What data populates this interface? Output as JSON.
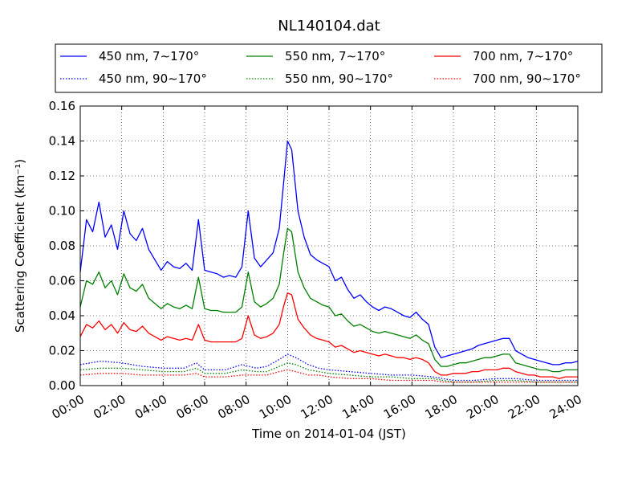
{
  "chart_data": {
    "type": "line",
    "title": "NL140104.dat",
    "xlabel": "Time on 2014-01-04 (JST)",
    "ylabel": "Scattering Coefficient (km⁻¹)",
    "xlim": [
      0,
      24
    ],
    "ylim": [
      0,
      0.16
    ],
    "x_ticks": [
      "00:00",
      "02:00",
      "04:00",
      "06:00",
      "08:00",
      "10:00",
      "12:00",
      "14:00",
      "16:00",
      "18:00",
      "20:00",
      "22:00",
      "24:00"
    ],
    "y_ticks": [
      "0.00",
      "0.02",
      "0.04",
      "0.06",
      "0.08",
      "0.10",
      "0.12",
      "0.14",
      "0.16"
    ],
    "grid": true,
    "legend_position": "top",
    "x_unit": "hours",
    "series": [
      {
        "name": "450 nm, 7∼170°",
        "color": "#0000ff",
        "style": "solid",
        "x": [
          0,
          0.3,
          0.6,
          0.9,
          1.2,
          1.5,
          1.8,
          2.1,
          2.4,
          2.7,
          3.0,
          3.3,
          3.6,
          3.9,
          4.2,
          4.5,
          4.8,
          5.1,
          5.4,
          5.7,
          6.0,
          6.3,
          6.6,
          6.9,
          7.2,
          7.5,
          7.8,
          8.1,
          8.4,
          8.7,
          9.0,
          9.3,
          9.6,
          9.8,
          10.0,
          10.2,
          10.5,
          10.8,
          11.1,
          11.4,
          11.7,
          12.0,
          12.3,
          12.6,
          12.9,
          13.2,
          13.5,
          13.8,
          14.1,
          14.4,
          14.7,
          15.0,
          15.3,
          15.6,
          15.9,
          16.2,
          16.5,
          16.8,
          17.1,
          17.4,
          17.7,
          18.0,
          18.3,
          18.6,
          18.9,
          19.2,
          19.5,
          19.8,
          20.1,
          20.4,
          20.7,
          21.0,
          21.3,
          21.6,
          21.9,
          22.2,
          22.5,
          22.8,
          23.1,
          23.4,
          23.7,
          24.0
        ],
        "y": [
          0.065,
          0.095,
          0.088,
          0.105,
          0.085,
          0.092,
          0.078,
          0.1,
          0.087,
          0.083,
          0.09,
          0.078,
          0.072,
          0.066,
          0.071,
          0.068,
          0.067,
          0.07,
          0.066,
          0.095,
          0.066,
          0.065,
          0.064,
          0.062,
          0.063,
          0.062,
          0.068,
          0.1,
          0.073,
          0.068,
          0.072,
          0.076,
          0.09,
          0.115,
          0.14,
          0.135,
          0.1,
          0.085,
          0.075,
          0.072,
          0.07,
          0.068,
          0.06,
          0.062,
          0.055,
          0.05,
          0.052,
          0.048,
          0.045,
          0.043,
          0.045,
          0.044,
          0.042,
          0.04,
          0.039,
          0.042,
          0.038,
          0.035,
          0.022,
          0.016,
          0.017,
          0.018,
          0.019,
          0.02,
          0.021,
          0.023,
          0.024,
          0.025,
          0.026,
          0.027,
          0.027,
          0.02,
          0.018,
          0.016,
          0.015,
          0.014,
          0.013,
          0.012,
          0.012,
          0.013,
          0.013,
          0.014
        ]
      },
      {
        "name": "550 nm, 7∼170°",
        "color": "#008000",
        "style": "solid",
        "x": [
          0,
          0.3,
          0.6,
          0.9,
          1.2,
          1.5,
          1.8,
          2.1,
          2.4,
          2.7,
          3.0,
          3.3,
          3.6,
          3.9,
          4.2,
          4.5,
          4.8,
          5.1,
          5.4,
          5.7,
          6.0,
          6.3,
          6.6,
          6.9,
          7.2,
          7.5,
          7.8,
          8.1,
          8.4,
          8.7,
          9.0,
          9.3,
          9.6,
          9.8,
          10.0,
          10.2,
          10.5,
          10.8,
          11.1,
          11.4,
          11.7,
          12.0,
          12.3,
          12.6,
          12.9,
          13.2,
          13.5,
          13.8,
          14.1,
          14.4,
          14.7,
          15.0,
          15.3,
          15.6,
          15.9,
          16.2,
          16.5,
          16.8,
          17.1,
          17.4,
          17.7,
          18.0,
          18.3,
          18.6,
          18.9,
          19.2,
          19.5,
          19.8,
          20.1,
          20.4,
          20.7,
          21.0,
          21.3,
          21.6,
          21.9,
          22.2,
          22.5,
          22.8,
          23.1,
          23.4,
          23.7,
          24.0
        ],
        "y": [
          0.045,
          0.06,
          0.058,
          0.065,
          0.056,
          0.06,
          0.052,
          0.064,
          0.056,
          0.054,
          0.058,
          0.05,
          0.047,
          0.044,
          0.047,
          0.045,
          0.044,
          0.046,
          0.044,
          0.062,
          0.044,
          0.043,
          0.043,
          0.042,
          0.042,
          0.042,
          0.045,
          0.065,
          0.048,
          0.045,
          0.047,
          0.05,
          0.058,
          0.075,
          0.09,
          0.088,
          0.065,
          0.056,
          0.05,
          0.048,
          0.046,
          0.045,
          0.04,
          0.041,
          0.037,
          0.034,
          0.035,
          0.033,
          0.031,
          0.03,
          0.031,
          0.03,
          0.029,
          0.028,
          0.027,
          0.029,
          0.026,
          0.024,
          0.015,
          0.011,
          0.011,
          0.012,
          0.013,
          0.013,
          0.014,
          0.015,
          0.016,
          0.016,
          0.017,
          0.018,
          0.018,
          0.013,
          0.012,
          0.011,
          0.01,
          0.009,
          0.009,
          0.008,
          0.008,
          0.009,
          0.009,
          0.009
        ]
      },
      {
        "name": "700 nm, 7∼170°",
        "color": "#ff0000",
        "style": "solid",
        "x": [
          0,
          0.3,
          0.6,
          0.9,
          1.2,
          1.5,
          1.8,
          2.1,
          2.4,
          2.7,
          3.0,
          3.3,
          3.6,
          3.9,
          4.2,
          4.5,
          4.8,
          5.1,
          5.4,
          5.7,
          6.0,
          6.3,
          6.6,
          6.9,
          7.2,
          7.5,
          7.8,
          8.1,
          8.4,
          8.7,
          9.0,
          9.3,
          9.6,
          9.8,
          10.0,
          10.2,
          10.5,
          10.8,
          11.1,
          11.4,
          11.7,
          12.0,
          12.3,
          12.6,
          12.9,
          13.2,
          13.5,
          13.8,
          14.1,
          14.4,
          14.7,
          15.0,
          15.3,
          15.6,
          15.9,
          16.2,
          16.5,
          16.8,
          17.1,
          17.4,
          17.7,
          18.0,
          18.3,
          18.6,
          18.9,
          19.2,
          19.5,
          19.8,
          20.1,
          20.4,
          20.7,
          21.0,
          21.3,
          21.6,
          21.9,
          22.2,
          22.5,
          22.8,
          23.1,
          23.4,
          23.7,
          24.0
        ],
        "y": [
          0.028,
          0.035,
          0.033,
          0.037,
          0.032,
          0.035,
          0.03,
          0.036,
          0.032,
          0.031,
          0.034,
          0.03,
          0.028,
          0.026,
          0.028,
          0.027,
          0.026,
          0.027,
          0.026,
          0.035,
          0.026,
          0.025,
          0.025,
          0.025,
          0.025,
          0.025,
          0.027,
          0.04,
          0.029,
          0.027,
          0.028,
          0.03,
          0.035,
          0.045,
          0.053,
          0.052,
          0.038,
          0.033,
          0.029,
          0.027,
          0.026,
          0.025,
          0.022,
          0.023,
          0.021,
          0.019,
          0.02,
          0.019,
          0.018,
          0.017,
          0.018,
          0.017,
          0.016,
          0.016,
          0.015,
          0.016,
          0.015,
          0.013,
          0.008,
          0.006,
          0.006,
          0.007,
          0.007,
          0.007,
          0.008,
          0.008,
          0.009,
          0.009,
          0.009,
          0.01,
          0.01,
          0.008,
          0.007,
          0.006,
          0.006,
          0.005,
          0.005,
          0.005,
          0.004,
          0.005,
          0.005,
          0.005
        ]
      },
      {
        "name": "450 nm, 90∼170°",
        "color": "#0000ff",
        "style": "dotted",
        "x": [
          0,
          1,
          2,
          3,
          4,
          5,
          5.6,
          6,
          7,
          7.8,
          8.5,
          9,
          9.6,
          10,
          10.4,
          11,
          11.5,
          12,
          13,
          14,
          15,
          16,
          17,
          17.5,
          18,
          19,
          20,
          21,
          22,
          23,
          24
        ],
        "y": [
          0.012,
          0.014,
          0.013,
          0.011,
          0.01,
          0.01,
          0.013,
          0.009,
          0.009,
          0.012,
          0.01,
          0.011,
          0.015,
          0.018,
          0.016,
          0.012,
          0.01,
          0.009,
          0.008,
          0.007,
          0.006,
          0.006,
          0.005,
          0.004,
          0.003,
          0.003,
          0.004,
          0.004,
          0.003,
          0.003,
          0.003
        ]
      },
      {
        "name": "550 nm, 90∼170°",
        "color": "#008000",
        "style": "dotted",
        "x": [
          0,
          1,
          2,
          3,
          4,
          5,
          5.6,
          6,
          7,
          7.8,
          8.5,
          9,
          9.6,
          10,
          10.4,
          11,
          11.5,
          12,
          13,
          14,
          15,
          16,
          17,
          17.5,
          18,
          19,
          20,
          21,
          22,
          23,
          24
        ],
        "y": [
          0.009,
          0.01,
          0.01,
          0.009,
          0.008,
          0.008,
          0.01,
          0.007,
          0.007,
          0.009,
          0.008,
          0.008,
          0.011,
          0.013,
          0.012,
          0.009,
          0.008,
          0.007,
          0.006,
          0.005,
          0.005,
          0.004,
          0.004,
          0.003,
          0.002,
          0.002,
          0.003,
          0.003,
          0.002,
          0.002,
          0.002
        ]
      },
      {
        "name": "700 nm, 90∼170°",
        "color": "#ff0000",
        "style": "dotted",
        "x": [
          0,
          1,
          2,
          3,
          4,
          5,
          5.6,
          6,
          7,
          7.8,
          8.5,
          9,
          9.6,
          10,
          10.4,
          11,
          11.5,
          12,
          13,
          14,
          15,
          16,
          17,
          17.5,
          18,
          19,
          20,
          21,
          22,
          23,
          24
        ],
        "y": [
          0.006,
          0.007,
          0.007,
          0.006,
          0.006,
          0.006,
          0.007,
          0.005,
          0.005,
          0.006,
          0.006,
          0.006,
          0.008,
          0.009,
          0.008,
          0.006,
          0.006,
          0.005,
          0.004,
          0.004,
          0.003,
          0.003,
          0.003,
          0.002,
          0.002,
          0.002,
          0.002,
          0.002,
          0.002,
          0.002,
          0.002
        ]
      }
    ]
  }
}
